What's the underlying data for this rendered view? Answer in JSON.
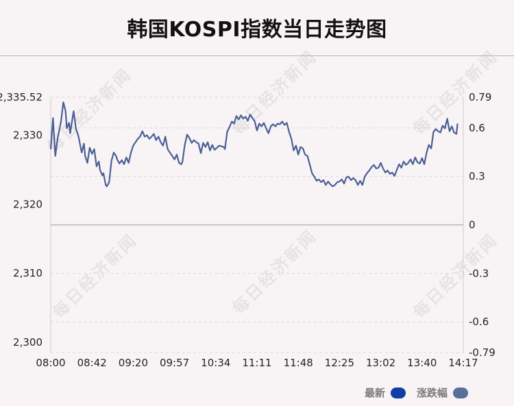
{
  "title": "韩国KOSPI指数当日走势图",
  "watermark": "每日经济新闻",
  "legend": {
    "latest_label": "最新",
    "latest_color": "#123da3",
    "change_label": "涨跌幅",
    "change_color": "#5a6e9a"
  },
  "chart_data": {
    "type": "line",
    "title": "韩国KOSPI指数当日走势图",
    "line_color": "#4a5f95",
    "x_ticks": [
      "08:00",
      "08:42",
      "09:20",
      "09:57",
      "10:34",
      "11:11",
      "11:48",
      "12:25",
      "13:02",
      "13:40",
      "14:17"
    ],
    "y_left_ticks": [
      {
        "label": "2,335.52",
        "value": 2335.52
      },
      {
        "label": "2,330",
        "value": 2330
      },
      {
        "label": "2,320",
        "value": 2320
      },
      {
        "label": "2,310",
        "value": 2310
      },
      {
        "label": "2,300",
        "value": 2300
      }
    ],
    "y_right_ticks": [
      {
        "label": "0.79",
        "value": 0.79
      },
      {
        "label": "0.6",
        "value": 0.6
      },
      {
        "label": "0.3",
        "value": 0.3
      },
      {
        "label": "0",
        "value": 0
      },
      {
        "label": "-0.3",
        "value": -0.3
      },
      {
        "label": "-0.6",
        "value": -0.6
      },
      {
        "label": "-0.79",
        "value": -0.79
      }
    ],
    "ylim": [
      2298.5,
      2335.52
    ],
    "y2lim": [
      -0.79,
      0.79
    ],
    "reference_value": 2317.2,
    "series": [
      {
        "values": [
          [
            0,
            2328.0
          ],
          [
            2,
            2332.5
          ],
          [
            4,
            2327.0
          ],
          [
            6,
            2329.5
          ],
          [
            9,
            2332.0
          ],
          [
            11,
            2334.8
          ],
          [
            13,
            2333.5
          ],
          [
            14,
            2331.0
          ],
          [
            16,
            2331.8
          ],
          [
            17,
            2330.3
          ],
          [
            19,
            2332.5
          ],
          [
            20,
            2333.5
          ],
          [
            22,
            2331.0
          ],
          [
            24,
            2330.0
          ],
          [
            25,
            2329.2
          ],
          [
            27,
            2327.5
          ],
          [
            29,
            2328.8
          ],
          [
            30,
            2327.0
          ],
          [
            32,
            2326.0
          ],
          [
            34,
            2328.2
          ],
          [
            36,
            2327.3
          ],
          [
            38,
            2328.0
          ],
          [
            40,
            2325.5
          ],
          [
            42,
            2326.2
          ],
          [
            43,
            2325.0
          ],
          [
            45,
            2324.2
          ],
          [
            46,
            2324.5
          ],
          [
            48,
            2322.8
          ],
          [
            49,
            2322.6
          ],
          [
            51,
            2323.2
          ],
          [
            53,
            2326.3
          ],
          [
            55,
            2327.5
          ],
          [
            57,
            2327.0
          ],
          [
            58,
            2326.5
          ],
          [
            60,
            2325.9
          ],
          [
            62,
            2326.4
          ],
          [
            64,
            2325.8
          ],
          [
            66,
            2326.8
          ],
          [
            68,
            2326.0
          ],
          [
            70,
            2327.5
          ],
          [
            72,
            2328.5
          ],
          [
            74,
            2329.0
          ],
          [
            76,
            2329.5
          ],
          [
            78,
            2329.8
          ],
          [
            80,
            2330.6
          ],
          [
            82,
            2329.8
          ],
          [
            84,
            2330.0
          ],
          [
            86,
            2329.5
          ],
          [
            88,
            2329.8
          ],
          [
            90,
            2330.2
          ],
          [
            92,
            2329.3
          ],
          [
            94,
            2329.8
          ],
          [
            96,
            2329.0
          ],
          [
            98,
            2328.5
          ],
          [
            100,
            2329.8
          ],
          [
            102,
            2328.0
          ],
          [
            104,
            2327.5
          ],
          [
            106,
            2327.0
          ],
          [
            108,
            2326.5
          ],
          [
            110,
            2327.2
          ],
          [
            112,
            2326.0
          ],
          [
            114,
            2325.8
          ],
          [
            115,
            2326.2
          ],
          [
            117,
            2328.6
          ],
          [
            119,
            2330.1
          ],
          [
            121,
            2329.6
          ],
          [
            123,
            2328.9
          ],
          [
            125,
            2329.3
          ],
          [
            127,
            2329.0
          ],
          [
            129,
            2328.8
          ],
          [
            131,
            2327.4
          ],
          [
            133,
            2328.9
          ],
          [
            135,
            2328.3
          ],
          [
            137,
            2329.0
          ],
          [
            139,
            2327.8
          ],
          [
            141,
            2328.6
          ],
          [
            143,
            2327.9
          ],
          [
            145,
            2328.2
          ],
          [
            147,
            2328.5
          ],
          [
            149,
            2328.4
          ],
          [
            151,
            2328.3
          ],
          [
            152,
            2328.0
          ],
          [
            154,
            2330.5
          ],
          [
            156,
            2331.2
          ],
          [
            158,
            2332.0
          ],
          [
            160,
            2331.7
          ],
          [
            162,
            2332.8
          ],
          [
            164,
            2332.3
          ],
          [
            166,
            2332.9
          ],
          [
            168,
            2332.4
          ],
          [
            170,
            2332.7
          ],
          [
            172,
            2332.1
          ],
          [
            174,
            2333.0
          ],
          [
            176,
            2332.5
          ],
          [
            178,
            2332.0
          ],
          [
            180,
            2330.7
          ],
          [
            182,
            2331.7
          ],
          [
            184,
            2331.3
          ],
          [
            186,
            2331.8
          ],
          [
            188,
            2331.0
          ],
          [
            190,
            2330.3
          ],
          [
            192,
            2331.3
          ],
          [
            194,
            2331.6
          ],
          [
            196,
            2331.3
          ],
          [
            198,
            2331.7
          ],
          [
            200,
            2331.6
          ],
          [
            202,
            2332.0
          ],
          [
            204,
            2331.5
          ],
          [
            206,
            2331.8
          ],
          [
            208,
            2330.5
          ],
          [
            210,
            2329.5
          ],
          [
            212,
            2327.8
          ],
          [
            214,
            2328.5
          ],
          [
            216,
            2327.2
          ],
          [
            218,
            2328.3
          ],
          [
            220,
            2328.1
          ],
          [
            222,
            2327.2
          ],
          [
            224,
            2327.0
          ],
          [
            226,
            2325.8
          ],
          [
            228,
            2324.5
          ],
          [
            230,
            2324.0
          ],
          [
            232,
            2323.4
          ],
          [
            234,
            2323.6
          ],
          [
            236,
            2323.2
          ],
          [
            238,
            2323.5
          ],
          [
            240,
            2322.8
          ],
          [
            242,
            2323.3
          ],
          [
            244,
            2322.9
          ],
          [
            246,
            2322.6
          ],
          [
            248,
            2322.8
          ],
          [
            250,
            2323.2
          ],
          [
            252,
            2323.3
          ],
          [
            254,
            2323.6
          ],
          [
            256,
            2323.0
          ],
          [
            258,
            2323.9
          ],
          [
            260,
            2324.0
          ],
          [
            262,
            2323.5
          ],
          [
            264,
            2323.8
          ],
          [
            266,
            2323.5
          ],
          [
            268,
            2322.8
          ],
          [
            270,
            2323.4
          ],
          [
            272,
            2322.8
          ],
          [
            274,
            2324.0
          ],
          [
            276,
            2324.5
          ],
          [
            278,
            2324.9
          ],
          [
            280,
            2325.4
          ],
          [
            282,
            2325.7
          ],
          [
            284,
            2325.2
          ],
          [
            286,
            2325.3
          ],
          [
            288,
            2326.0
          ],
          [
            290,
            2325.2
          ],
          [
            292,
            2324.6
          ],
          [
            294,
            2324.9
          ],
          [
            296,
            2324.4
          ],
          [
            298,
            2324.6
          ],
          [
            300,
            2324.1
          ],
          [
            302,
            2325.0
          ],
          [
            304,
            2325.8
          ],
          [
            306,
            2325.3
          ],
          [
            308,
            2326.2
          ],
          [
            310,
            2325.7
          ],
          [
            312,
            2326.0
          ],
          [
            314,
            2326.5
          ],
          [
            316,
            2325.8
          ],
          [
            318,
            2326.8
          ],
          [
            320,
            2326.1
          ],
          [
            322,
            2325.9
          ],
          [
            324,
            2326.7
          ],
          [
            326,
            2325.8
          ],
          [
            328,
            2327.5
          ],
          [
            330,
            2328.6
          ],
          [
            332,
            2328.1
          ],
          [
            334,
            2330.5
          ],
          [
            336,
            2330.9
          ],
          [
            338,
            2330.6
          ],
          [
            340,
            2330.4
          ],
          [
            342,
            2331.4
          ],
          [
            344,
            2331.0
          ],
          [
            346,
            2332.4
          ],
          [
            348,
            2330.6
          ],
          [
            350,
            2331.3
          ],
          [
            352,
            2330.4
          ],
          [
            354,
            2330.2
          ],
          [
            355,
            2331.7
          ]
        ]
      }
    ]
  }
}
